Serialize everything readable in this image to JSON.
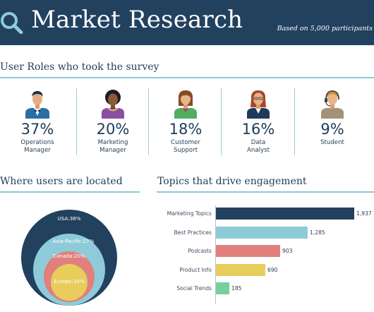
{
  "header": {
    "title": "Market Research",
    "subtitle": "Based on 5,000 participants",
    "background": "#22415f"
  },
  "roles_section": {
    "title": "User Roles who took the survey",
    "roles": [
      {
        "percent": "37%",
        "label": "Operations\nManager",
        "icon": "businessman-bowtie-icon"
      },
      {
        "percent": "20%",
        "label": "Marketing\nManager",
        "icon": "woman-curly-hair-icon"
      },
      {
        "percent": "18%",
        "label": "Customer\nSupport",
        "icon": "woman-green-top-icon"
      },
      {
        "percent": "16%",
        "label": "Data\nAnalyst",
        "icon": "woman-navy-suit-icon"
      },
      {
        "percent": "9%",
        "label": "Student",
        "icon": "student-headset-icon"
      }
    ]
  },
  "location_section": {
    "title": "Where users are located",
    "regions": [
      {
        "label": "USA:38%",
        "value": 38,
        "color": "#22415f"
      },
      {
        "label": "Asia-Pacific:27%",
        "value": 27,
        "color": "#8ecbd8"
      },
      {
        "label": "Canada:20%",
        "value": 20,
        "color": "#e17f7d"
      },
      {
        "label": "Europe:15%",
        "value": 15,
        "color": "#e8cd5d"
      }
    ]
  },
  "topics_section": {
    "title": "Topics that drive engagement"
  },
  "chart_data": {
    "type": "bar",
    "orientation": "horizontal",
    "categories": [
      "Marketing Topics",
      "Best Practices",
      "Podcasts",
      "Product Info",
      "Social Trends"
    ],
    "values": [
      1937,
      1285,
      903,
      690,
      185
    ],
    "value_labels": [
      "1,937",
      "1,285",
      "903",
      "690",
      "185"
    ],
    "colors": [
      "#22415f",
      "#8ecbd8",
      "#e17f7d",
      "#e8cd5d",
      "#77cf9c"
    ],
    "xlim": [
      0,
      1937
    ],
    "grid": false
  }
}
